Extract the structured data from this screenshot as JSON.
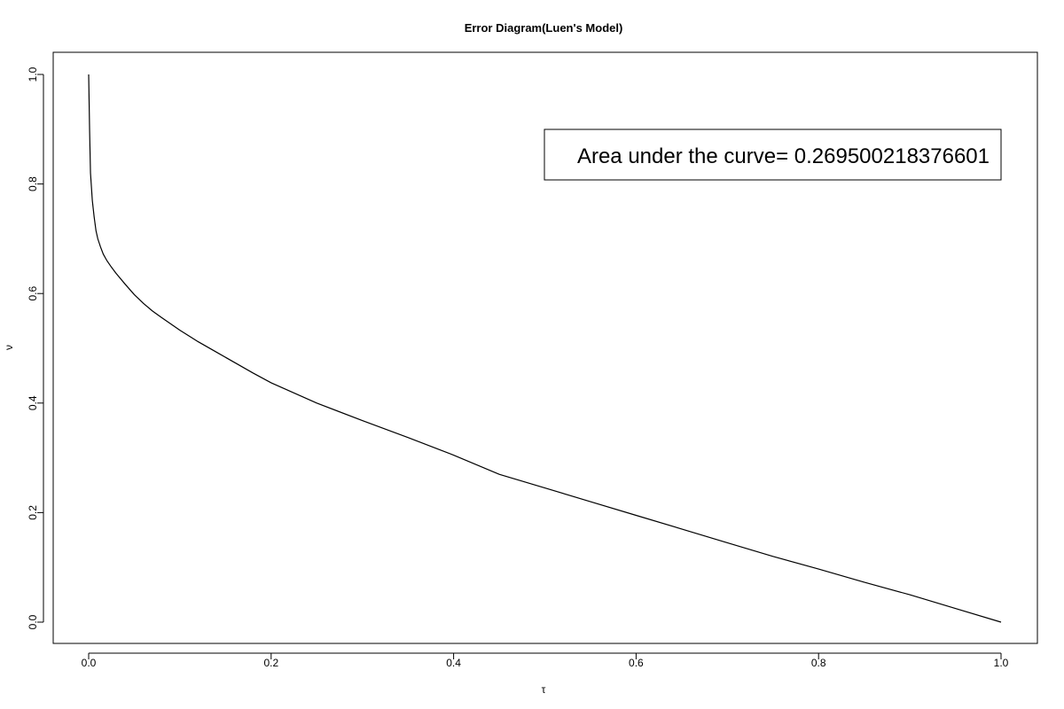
{
  "chart_data": {
    "type": "line",
    "title": "Error Diagram(Luen's Model)",
    "xlabel": "τ",
    "ylabel": "ν",
    "xlim": [
      0.0,
      1.0
    ],
    "ylim": [
      0.0,
      1.0
    ],
    "x_ticks": [
      "0.0",
      "0.2",
      "0.4",
      "0.6",
      "0.8",
      "1.0"
    ],
    "y_ticks": [
      "0.0",
      "0.2",
      "0.4",
      "0.6",
      "0.8",
      "1.0"
    ],
    "grid": false,
    "legend": "none",
    "annotation": "Area under the curve= 0.269500218376601",
    "series": [
      {
        "x": [
          0.0,
          0.001,
          0.002,
          0.004,
          0.006,
          0.008,
          0.01,
          0.013,
          0.016,
          0.02,
          0.025,
          0.03,
          0.04,
          0.05,
          0.06,
          0.07,
          0.08,
          0.1,
          0.12,
          0.14,
          0.16,
          0.18,
          0.2,
          0.25,
          0.3,
          0.35,
          0.4,
          0.45,
          0.5,
          0.55,
          0.6,
          0.65,
          0.7,
          0.75,
          0.8,
          0.85,
          0.9,
          0.95,
          1.0
        ],
        "y": [
          1.0,
          0.9,
          0.82,
          0.77,
          0.74,
          0.715,
          0.7,
          0.685,
          0.672,
          0.66,
          0.648,
          0.637,
          0.617,
          0.598,
          0.582,
          0.568,
          0.556,
          0.533,
          0.512,
          0.493,
          0.474,
          0.455,
          0.437,
          0.4,
          0.368,
          0.337,
          0.305,
          0.27,
          0.245,
          0.22,
          0.195,
          0.17,
          0.145,
          0.12,
          0.097,
          0.073,
          0.05,
          0.025,
          0.0
        ]
      }
    ]
  }
}
